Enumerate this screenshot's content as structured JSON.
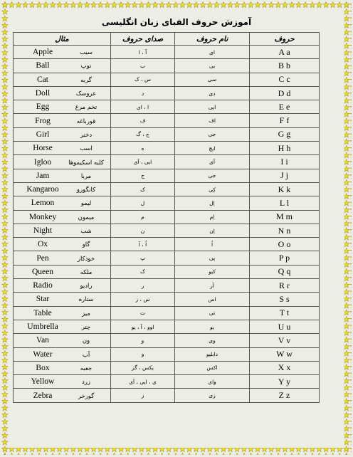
{
  "title": "آموزش حروف الفبای زبان انگلیسی",
  "table": {
    "header": [
      "حروف",
      "نام حروف",
      "صدای حروف",
      "مثال"
    ],
    "rows": [
      [
        "A a",
        "ای",
        "آ ، ا",
        "Apple",
        "سیب"
      ],
      [
        "B b",
        "بی",
        "ب",
        "Ball",
        "توپ"
      ],
      [
        "C c",
        "سی",
        "س ، ک",
        "Cat",
        "گربه"
      ],
      [
        "D d",
        "دی",
        "د",
        "Doll",
        "عروسک"
      ],
      [
        "E e",
        "ایی",
        "ا ، ای",
        "Egg",
        "تخم مرغ"
      ],
      [
        "F f",
        "اف",
        "ف",
        "Frog",
        "قورباغه"
      ],
      [
        "G g",
        "جی",
        "ج ، گ",
        "Girl",
        "دختر"
      ],
      [
        "H h",
        "ایچ",
        "ه",
        "Horse",
        "اسب"
      ],
      [
        "I i",
        "آی",
        "ایی ، آی",
        "Igloo",
        "کلبه اسکیموها"
      ],
      [
        "J j",
        "جی",
        "ج",
        "Jam",
        "مربا"
      ],
      [
        "K k",
        "کِی",
        "ک",
        "Kangaroo",
        "کانگورو"
      ],
      [
        "L l",
        "اِل",
        "ل",
        "Lemon",
        "لیمو"
      ],
      [
        "M m",
        "اِم",
        "م",
        "Monkey",
        "میمون"
      ],
      [
        "N n",
        "اِن",
        "ن",
        "Night",
        "شب"
      ],
      [
        "O o",
        "اُ",
        "اُ ، آ",
        "Ox",
        "گاو"
      ],
      [
        "P p",
        "پی",
        "پ",
        "Pen",
        "خودکار"
      ],
      [
        "Q q",
        "کیو",
        "ک",
        "Queen",
        "ملکه"
      ],
      [
        "R r",
        "آر",
        "ر",
        "Radio",
        "رادیو"
      ],
      [
        "S s",
        "اس",
        "س ، ز",
        "Star",
        "ستاره"
      ],
      [
        "T t",
        "تی",
        "ت",
        "Table",
        "میز"
      ],
      [
        "U u",
        "یو",
        "اوو ، آ ، یو",
        "Umbrella",
        "چتر"
      ],
      [
        "V v",
        "وی",
        "و",
        "Van",
        "ون"
      ],
      [
        "W w",
        "دابلیو",
        "و",
        "Water",
        "آب"
      ],
      [
        "X x",
        "اکس",
        "یکس ، گز",
        "Box",
        "جعبه"
      ],
      [
        "Y y",
        "وای",
        "ی ، ایی ، آی",
        "Yellow",
        "زرد"
      ],
      [
        "Z z",
        "زی",
        "ز",
        "Zebra",
        "گورخر"
      ]
    ]
  }
}
